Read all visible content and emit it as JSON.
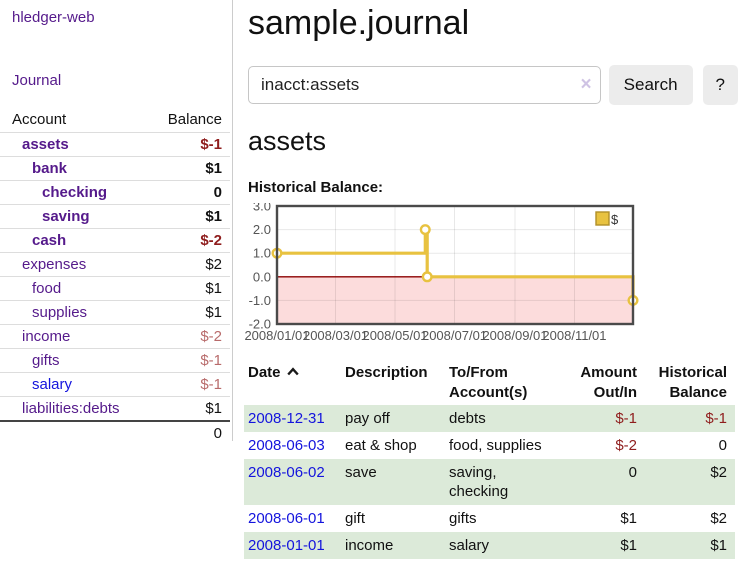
{
  "app": {
    "title": "hledger-web",
    "nav": {
      "journal": "Journal"
    }
  },
  "sidebar": {
    "accounts_table": {
      "headers": {
        "account": "Account",
        "balance": "Balance"
      },
      "rows": [
        {
          "account": "assets",
          "balance": "$-1",
          "depth": 1,
          "bold": true,
          "neg": "strong"
        },
        {
          "account": "bank",
          "balance": "$1",
          "depth": 2,
          "bold": true,
          "neg": null
        },
        {
          "account": "checking",
          "balance": "0",
          "depth": 3,
          "bold": true,
          "neg": null
        },
        {
          "account": "saving",
          "balance": "$1",
          "depth": 3,
          "bold": true,
          "neg": null
        },
        {
          "account": "cash",
          "balance": "$-2",
          "depth": 2,
          "bold": true,
          "neg": "strong"
        },
        {
          "account": "expenses",
          "balance": "$2",
          "depth": 1,
          "bold": false,
          "neg": null
        },
        {
          "account": "food",
          "balance": "$1",
          "depth": 2,
          "bold": false,
          "neg": null
        },
        {
          "account": "supplies",
          "balance": "$1",
          "depth": 2,
          "bold": false,
          "neg": null
        },
        {
          "account": "income",
          "balance": "$-2",
          "depth": 1,
          "bold": false,
          "neg": "soft"
        },
        {
          "account": "gifts",
          "balance": "$-1",
          "depth": 2,
          "bold": false,
          "neg": "soft"
        },
        {
          "account": "salary",
          "balance": "$-1",
          "depth": 2,
          "bold": false,
          "neg": "soft",
          "unvisited": true
        },
        {
          "account": "liabilities:debts",
          "balance": "$1",
          "depth": 1,
          "bold": false,
          "neg": null
        }
      ],
      "total": "0"
    }
  },
  "main": {
    "title": "sample.journal",
    "search": {
      "value": "inacct:assets",
      "clear_icon": "×",
      "search_button": "Search",
      "help_button": "?"
    },
    "account_heading": "assets",
    "chart_label": "Historical Balance:"
  },
  "chart_data": {
    "type": "line",
    "step": true,
    "title": "Historical Balance:",
    "series": [
      {
        "name": "$",
        "color": "#e8c240",
        "points": [
          [
            "2008-01-01",
            1
          ],
          [
            "2008-06-01",
            2
          ],
          [
            "2008-06-03",
            0
          ],
          [
            "2008-12-31",
            -1
          ]
        ]
      }
    ],
    "x_ticks": [
      "2008/01/01",
      "2008/03/01",
      "2008/05/01",
      "2008/07/01",
      "2008/09/01",
      "2008/11/01"
    ],
    "y_ticks": [
      "3.0",
      "2.0",
      "1.0",
      "0.0",
      "-1.0",
      "-2.0"
    ],
    "xlim": [
      "2008-01-01",
      "2008-12-31"
    ],
    "ylim": [
      -2,
      3
    ],
    "grid": true,
    "legend": {
      "label": "$",
      "position": "top-right"
    },
    "negative_region_color": "#fcdcdc",
    "zero_line_color": "#8b0000"
  },
  "register_table": {
    "columns": [
      {
        "label": "Date",
        "align": "left",
        "sort": "asc"
      },
      {
        "label": "Description",
        "align": "left"
      },
      {
        "label": "To/From Account(s)",
        "align": "left"
      },
      {
        "label": "Amount Out/In",
        "align": "right"
      },
      {
        "label": "Historical Balance",
        "align": "right"
      }
    ],
    "rows": [
      {
        "date": "2008-12-31",
        "description": "pay off",
        "accounts": "debts",
        "amount": "$-1",
        "amount_negative": true,
        "balance": "$-1",
        "balance_negative": true
      },
      {
        "date": "2008-06-03",
        "description": "eat & shop",
        "accounts": "food, supplies",
        "amount": "$-2",
        "amount_negative": true,
        "balance": "0",
        "balance_negative": false
      },
      {
        "date": "2008-06-02",
        "description": "save",
        "accounts": "saving, checking",
        "amount": "0",
        "amount_negative": false,
        "balance": "$2",
        "balance_negative": false
      },
      {
        "date": "2008-06-01",
        "description": "gift",
        "accounts": "gifts",
        "amount": "$1",
        "amount_negative": false,
        "balance": "$2",
        "balance_negative": false
      },
      {
        "date": "2008-01-01",
        "description": "income",
        "accounts": "salary",
        "amount": "$1",
        "amount_negative": false,
        "balance": "$1",
        "balance_negative": false
      }
    ]
  },
  "colors": {
    "link_purple": "#551a8b",
    "link_blue": "#1414dd",
    "negative_strong": "#8f1d1d",
    "negative_soft": "#b86b6b",
    "row_stripe_green": "#dcead9",
    "chart_series_gold": "#e8c240",
    "chart_negative_fill": "#fcdcdc",
    "chart_zero_line": "#8b0000"
  }
}
